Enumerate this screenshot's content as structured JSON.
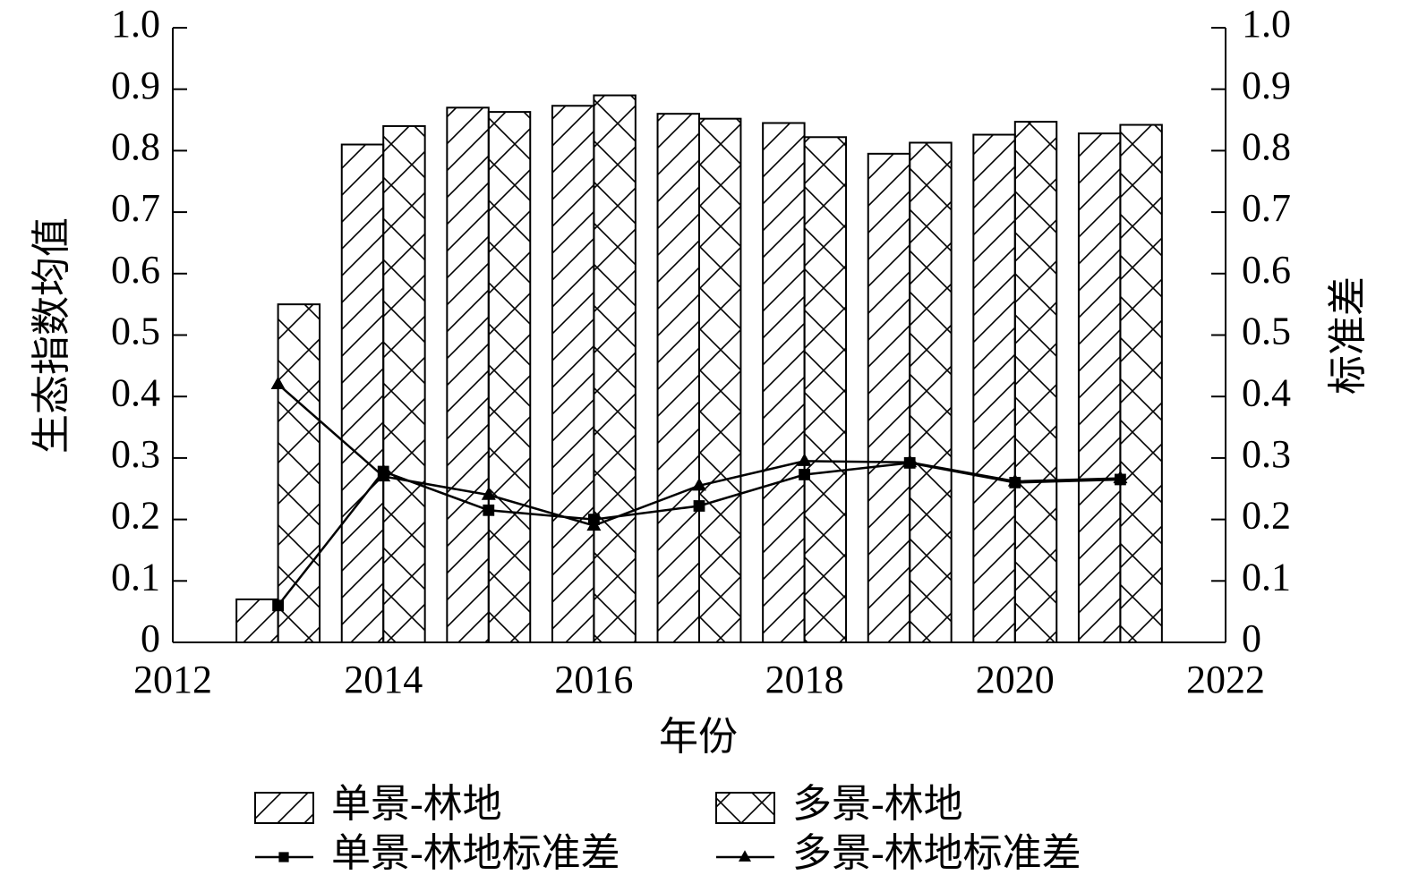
{
  "chart_data": {
    "type": "bar",
    "x_label": "年份",
    "y_label": "生态指数均值",
    "y2_label": "标准差",
    "x": [
      2013,
      2014,
      2015,
      2016,
      2017,
      2018,
      2019,
      2020,
      2021
    ],
    "xlim": [
      2012,
      2022
    ],
    "xticks": [
      2012,
      2014,
      2016,
      2018,
      2020,
      2022
    ],
    "ylim": [
      0,
      1
    ],
    "yticks": [
      0,
      0.1,
      0.2,
      0.3,
      0.4,
      0.5,
      0.6,
      0.7,
      0.8,
      0.9,
      {
        "value": 1,
        "label": "1.0"
      }
    ],
    "y2lim": [
      0,
      1
    ],
    "y2ticks": [
      0,
      0.1,
      0.2,
      0.3,
      0.4,
      0.5,
      0.6,
      0.7,
      0.8,
      0.9,
      {
        "value": 1,
        "label": "1.0"
      }
    ],
    "series": [
      {
        "name": "单景-林地",
        "type": "bar",
        "pattern": "diagonal",
        "color": "#000000",
        "values": [
          0.07,
          0.81,
          0.87,
          0.873,
          0.86,
          0.845,
          0.795,
          0.826,
          0.828
        ]
      },
      {
        "name": "多景-林地",
        "type": "bar",
        "pattern": "cross",
        "color": "#000000",
        "values": [
          0.55,
          0.84,
          0.863,
          0.89,
          0.852,
          0.822,
          0.813,
          0.847,
          0.842
        ]
      },
      {
        "name": "单景-林地标准差",
        "type": "line",
        "axis": "y2",
        "marker": "square",
        "color": "#000000",
        "values": [
          0.06,
          0.278,
          0.215,
          0.2,
          0.222,
          0.273,
          0.292,
          0.26,
          0.265
        ]
      },
      {
        "name": "多景-林地标准差",
        "type": "line",
        "axis": "y2",
        "marker": "triangle",
        "color": "#000000",
        "values": [
          0.42,
          0.27,
          0.24,
          0.19,
          0.255,
          0.295,
          0.293,
          0.262,
          0.267
        ]
      }
    ]
  }
}
